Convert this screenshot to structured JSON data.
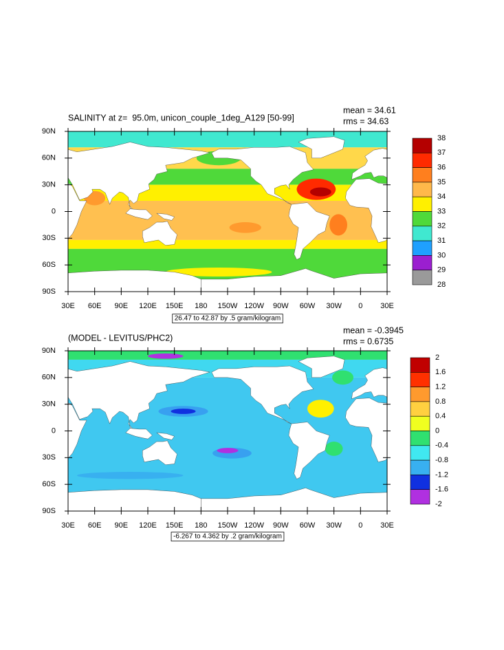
{
  "panels": [
    {
      "title": "SALINITY at z=  95.0m, unicon_couple_1deg_A129 [50-99]",
      "mean": "mean = 34.61",
      "rms": "rms = 34.63",
      "lat_labels": [
        "90N",
        "60N",
        "30N",
        "0",
        "30S",
        "60S",
        "90S"
      ],
      "lon_labels": [
        "30E",
        "60E",
        "90E",
        "120E",
        "150E",
        "180",
        "150W",
        "120W",
        "90W",
        "60W",
        "30W",
        "0",
        "30E"
      ],
      "info": "26.47 to 42.87 by .5 gram/kilogram",
      "colorbar": {
        "levels": [
          38,
          37,
          36,
          35,
          34,
          33,
          32,
          31,
          30,
          29,
          28
        ],
        "colors": [
          "#b40000",
          "#ff2a00",
          "#ff7f1e",
          "#ffb84a",
          "#fff000",
          "#4fd93a",
          "#40e8d0",
          "#1fa0ff",
          "#9b1fd0",
          "#9a9a9a"
        ]
      }
    },
    {
      "title": "(MODEL - LEVITUS/PHC2)",
      "mean": "mean = -0.3945",
      "rms": "rms = 0.6735",
      "lat_labels": [
        "90N",
        "60N",
        "30N",
        "0",
        "30S",
        "60S",
        "90S"
      ],
      "lon_labels": [
        "30E",
        "60E",
        "90E",
        "120E",
        "150E",
        "180",
        "150W",
        "120W",
        "90W",
        "60W",
        "30W",
        "0",
        "30E"
      ],
      "info": "-6.267 to 4.362 by .2 gram/kilogram",
      "colorbar": {
        "levels": [
          2,
          1.6,
          1.2,
          0.8,
          0.4,
          0,
          -0.4,
          -0.8,
          -1.2,
          -1.6,
          -2
        ],
        "colors": [
          "#c00000",
          "#ff3000",
          "#ff9a2e",
          "#ffd040",
          "#f0ff20",
          "#30e070",
          "#40e8f0",
          "#38b0f0",
          "#1030e0",
          "#b030e0"
        ]
      }
    }
  ]
}
